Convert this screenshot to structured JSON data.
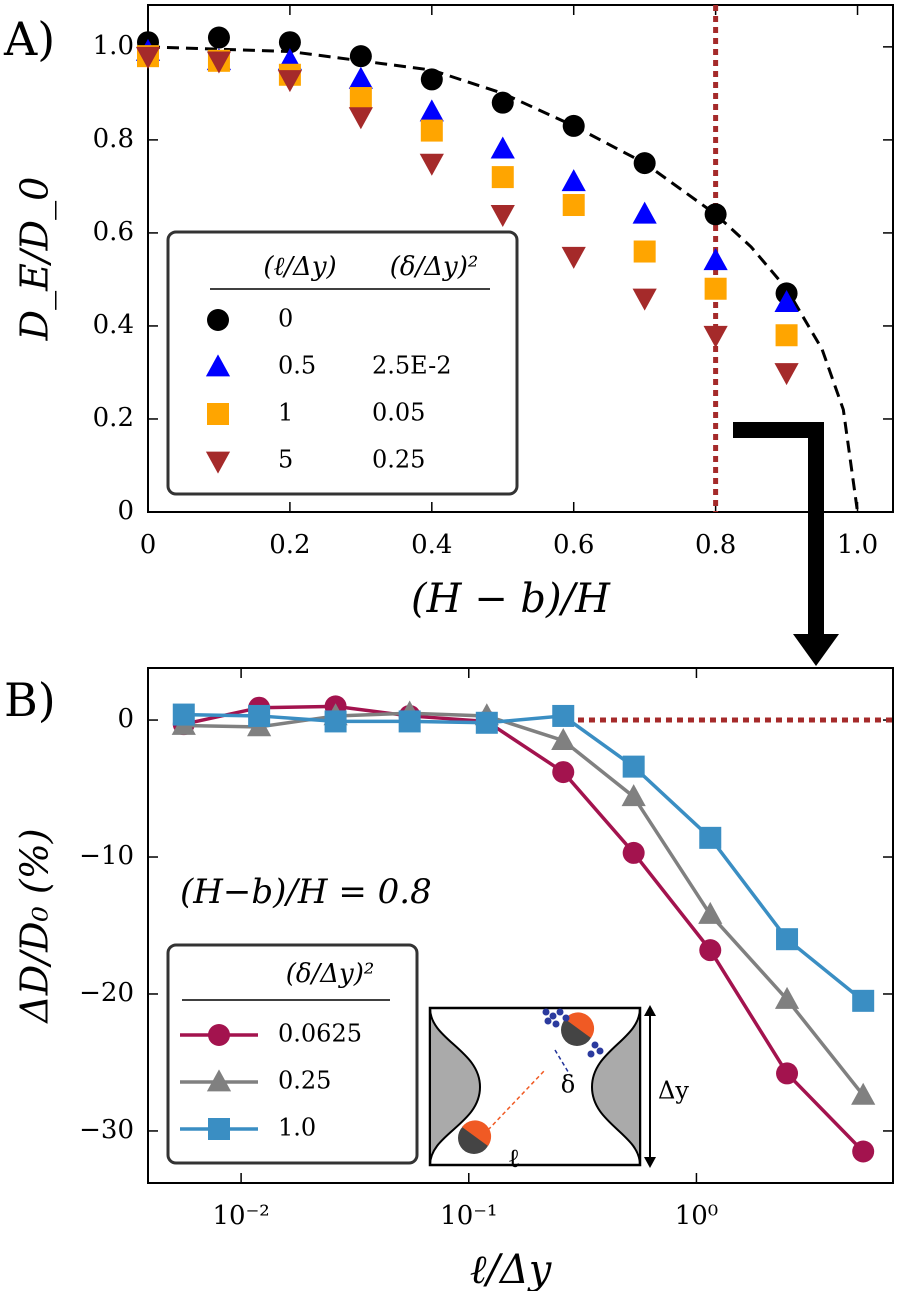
{
  "chart_data": [
    {
      "type": "scatter",
      "panel_label": "A)",
      "xlabel": "(H − b)/H",
      "ylabel": "D_E/D_0",
      "x": [
        0,
        0.1,
        0.2,
        0.3,
        0.4,
        0.5,
        0.6,
        0.7,
        0.8,
        0.9
      ],
      "xlim": [
        0,
        1.05
      ],
      "ylim": [
        0,
        1.09
      ],
      "xticks": [
        0,
        0.2,
        0.4,
        0.6,
        0.8,
        {
          "value": 1,
          "label": "1.0"
        }
      ],
      "yticks": [
        0,
        0.2,
        0.4,
        0.6,
        0.8,
        {
          "value": 1,
          "label": "1.0"
        }
      ],
      "legend_headers": [
        "(ℓ/Δy)",
        "(δ/Δy)²"
      ],
      "series": [
        {
          "name": "0",
          "color": "#000000",
          "marker": "circle",
          "values": [
            1.01,
            1.02,
            1.01,
            0.98,
            0.93,
            0.88,
            0.83,
            0.75,
            0.64,
            0.47
          ]
        },
        {
          "name": "0.5",
          "delta": "2.5E-2",
          "color": "#0000ff",
          "marker": "triangle-up",
          "values": [
            0.99,
            0.97,
            0.97,
            0.93,
            0.86,
            0.78,
            0.71,
            0.64,
            0.54,
            0.45
          ]
        },
        {
          "name": "1",
          "delta": "0.05",
          "color": "#ffa500",
          "marker": "square",
          "values": [
            0.98,
            0.97,
            0.94,
            0.89,
            0.82,
            0.72,
            0.66,
            0.56,
            0.48,
            0.38
          ]
        },
        {
          "name": "5",
          "delta": "0.25",
          "color": "#a52a2a",
          "marker": "triangle-down",
          "values": [
            0.98,
            0.97,
            0.93,
            0.85,
            0.75,
            0.64,
            0.55,
            0.46,
            0.38,
            0.3
          ]
        }
      ],
      "fit": {
        "x": [
          0,
          0.2,
          0.4,
          0.5,
          0.6,
          0.7,
          0.8,
          0.85,
          0.9,
          0.95,
          0.98,
          1.0
        ],
        "values": [
          1.0,
          0.99,
          0.95,
          0.9,
          0.83,
          0.75,
          0.64,
          0.57,
          0.48,
          0.35,
          0.22,
          0
        ],
        "color": "#000000"
      },
      "reference_line": {
        "x": 0.8,
        "color": "#a52a2a"
      }
    },
    {
      "type": "line",
      "panel_label": "B)",
      "xlabel": "ℓ/Δy",
      "ylabel": "ΔD/D₀ (%)",
      "log_x": true,
      "annotation": "(H−b)/H = 0.8",
      "legend_title": "(δ/Δy)²",
      "x": [
        0.0056,
        0.012,
        0.026,
        0.055,
        0.12,
        0.26,
        0.53,
        1.15,
        2.5,
        5.4
      ],
      "xlim": [
        0.0039,
        7.3
      ],
      "ylim": [
        -33.8,
        3.8
      ],
      "xticks": [
        {
          "value": 0.01,
          "label": "10⁻²"
        },
        {
          "value": 0.1,
          "label": "10⁻¹"
        },
        {
          "value": 1,
          "label": "10⁰"
        }
      ],
      "yticks": [
        0,
        {
          "value": -10,
          "label": "−10"
        },
        {
          "value": -20,
          "label": "−20"
        },
        {
          "value": -30,
          "label": "−30"
        }
      ],
      "series": [
        {
          "name": "0.0625",
          "color": "#a3134e",
          "marker": "circle",
          "values": [
            -0.3,
            0.9,
            1.0,
            0.3,
            -0.1,
            -3.8,
            -9.7,
            -16.8,
            -25.8,
            -31.5
          ]
        },
        {
          "name": "0.25",
          "color": "#808080",
          "marker": "triangle-up",
          "values": [
            -0.4,
            -0.5,
            0.3,
            0.5,
            0.3,
            -1.5,
            -5.6,
            -14.2,
            -20.4,
            -27.4
          ]
        },
        {
          "name": "1.0",
          "color": "#3a8ec3",
          "marker": "square",
          "values": [
            0.4,
            0.3,
            -0.1,
            -0.1,
            -0.2,
            0.3,
            -3.4,
            -8.6,
            -16.0,
            -20.5
          ]
        }
      ],
      "reference_line": {
        "y": 0,
        "from_x": 0.27,
        "color": "#a52a2a"
      }
    }
  ],
  "inset": {
    "delta": "δ",
    "ell": "ℓ",
    "dy": "Δy"
  }
}
